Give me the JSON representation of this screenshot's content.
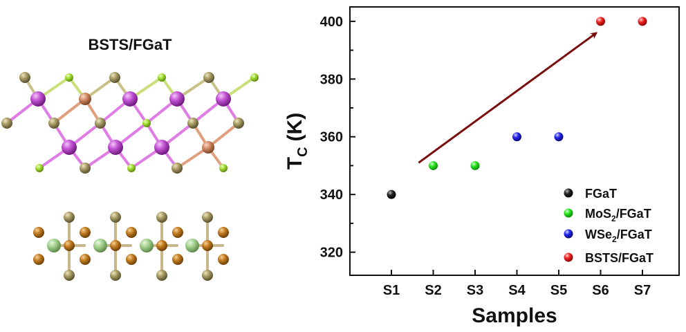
{
  "structure_panel": {
    "title": "BSTS/FGaT",
    "colors": {
      "bond_light": "#c9c288",
      "bond_dark": "#8f8a5c",
      "magenta": "#b13cc2",
      "magenta_bond": "#e07ce6",
      "olive": "#9e915e",
      "lime": "#9fdc2c",
      "salmon": "#d08a66",
      "orange": "#b8741e",
      "pale_green": "#9fce8a"
    }
  },
  "chart_data": {
    "type": "scatter",
    "title": "",
    "xlabel": "Samples",
    "ylabel_main": "T",
    "ylabel_sub": "C",
    "ylabel_unit": "(K)",
    "categories": [
      "S1",
      "S2",
      "S3",
      "S4",
      "S5",
      "S6",
      "S7"
    ],
    "ylim": [
      312,
      405
    ],
    "yticks": [
      320,
      340,
      360,
      380,
      400
    ],
    "series": [
      {
        "name_main": "FGaT",
        "name_sub": "",
        "name_rest": "",
        "color": "#111111",
        "points": [
          {
            "x": "S1",
            "y": 340
          }
        ]
      },
      {
        "name_main": "MoS",
        "name_sub": "2",
        "name_rest": "/FGaT",
        "color": "#22e21b",
        "points": [
          {
            "x": "S2",
            "y": 350
          },
          {
            "x": "S3",
            "y": 350
          }
        ]
      },
      {
        "name_main": "WSe",
        "name_sub": "2",
        "name_rest": "/FGaT",
        "color": "#1d1de6",
        "points": [
          {
            "x": "S4",
            "y": 360
          },
          {
            "x": "S5",
            "y": 360
          }
        ]
      },
      {
        "name_main": "BSTS/FGaT",
        "name_sub": "",
        "name_rest": "",
        "color": "#ee1c1c",
        "points": [
          {
            "x": "S6",
            "y": 400
          },
          {
            "x": "S7",
            "y": 400
          }
        ]
      }
    ],
    "annotations": [
      {
        "type": "arrow",
        "from": {
          "x": 0.65,
          "y": 351
        },
        "to": {
          "x": 4.9,
          "y": 396
        },
        "color": "#7a0d0d"
      }
    ],
    "legend": "bottom-right",
    "grid": false
  }
}
